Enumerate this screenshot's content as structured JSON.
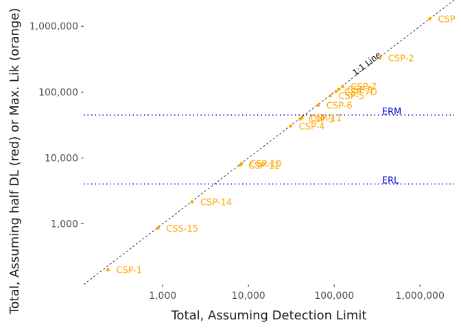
{
  "chart_data": {
    "type": "scatter",
    "title": "",
    "xlabel": "Total, Assuming Detection Limit",
    "ylabel": "Total, Assuming half DL (red) or Max. Lik (orange)",
    "x_scale": "log10",
    "y_scale": "log10",
    "xlim": [
      120,
      2500000
    ],
    "ylim": [
      120,
      2500000
    ],
    "x_ticks": [
      1000,
      10000,
      100000,
      1000000
    ],
    "x_tick_labels": [
      "1,000",
      "10,000",
      "100,000",
      "1,000,000"
    ],
    "y_ticks": [
      1000,
      10000,
      100000,
      1000000
    ],
    "y_tick_labels": [
      "1,000",
      "10,000",
      "100,000",
      "1,000,000"
    ],
    "grid": false,
    "legend": "none",
    "point_color": "#FFA500",
    "series": [
      {
        "points": [
          {
            "label": "CSP-1",
            "x": 230,
            "y": 200
          },
          {
            "label": "CSS-15",
            "x": 880,
            "y": 860
          },
          {
            "label": "CSP-14",
            "x": 2200,
            "y": 2150
          },
          {
            "label": "CSP-12",
            "x": 8000,
            "y": 7800
          },
          {
            "label": "CSP-10",
            "x": 8300,
            "y": 8200
          },
          {
            "label": "CSP-4",
            "x": 31000,
            "y": 30500
          },
          {
            "label": "CSP-3",
            "x": 40000,
            "y": 39000
          },
          {
            "label": "CSP-11",
            "x": 42000,
            "y": 41000
          },
          {
            "label": "CSP-6",
            "x": 65000,
            "y": 63000
          },
          {
            "label": "CSP-5",
            "x": 90000,
            "y": 88000
          },
          {
            "label": "CSP-7D",
            "x": 105000,
            "y": 102000
          },
          {
            "label": "CSP-9",
            "x": 113000,
            "y": 110000
          },
          {
            "label": "CSP-7",
            "x": 125000,
            "y": 122000
          },
          {
            "label": "CSP-2",
            "x": 340000,
            "y": 330000
          },
          {
            "label": "CSP",
            "x": 1300000,
            "y": 1300000
          }
        ]
      }
    ],
    "reference_lines": [
      {
        "label": "1:1 Line",
        "kind": "diagonal",
        "color": "#000000",
        "style": "dashed"
      },
      {
        "label": "ERM",
        "kind": "horizontal",
        "y": 44800,
        "color": "#0000CD",
        "style": "dotted"
      },
      {
        "label": "ERL",
        "kind": "horizontal",
        "y": 4020,
        "color": "#0000CD",
        "style": "dotted"
      }
    ]
  }
}
